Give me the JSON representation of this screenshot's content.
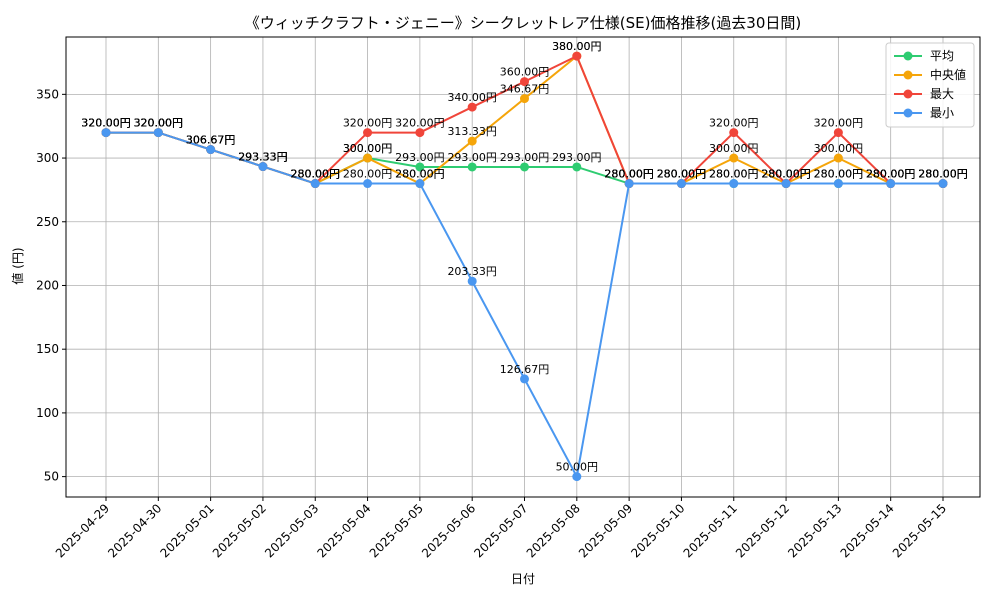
{
  "chart_data": {
    "type": "line",
    "title": "《ウィッチクラフト・ジェニー》シークレットレア仕様(SE)価格推移(過去30日間)",
    "xlabel": "日付",
    "ylabel": "値 (円)",
    "categories": [
      "2025-04-29",
      "2025-04-30",
      "2025-05-01",
      "2025-05-02",
      "2025-05-03",
      "2025-05-04",
      "2025-05-05",
      "2025-05-06",
      "2025-05-07",
      "2025-05-08",
      "2025-05-09",
      "2025-05-10",
      "2025-05-11",
      "2025-05-12",
      "2025-05-13",
      "2025-05-14",
      "2025-05-15"
    ],
    "ylim": [
      34,
      395
    ],
    "yticks": [
      50,
      100,
      150,
      200,
      250,
      300,
      350
    ],
    "grid": true,
    "legend_position": "top-right",
    "label_suffix": "円",
    "series": [
      {
        "name": "平均",
        "color": "#2ecc71",
        "values": [
          320,
          320,
          306.67,
          293.33,
          280,
          300,
          293,
          293,
          293,
          293,
          280,
          280,
          280,
          280,
          280,
          280,
          280
        ]
      },
      {
        "name": "中央値",
        "color": "#f5a50a",
        "values": [
          320,
          320,
          306.67,
          293.33,
          280,
          300,
          280,
          313.33,
          346.67,
          380,
          280,
          280,
          300,
          280,
          300,
          280,
          280
        ]
      },
      {
        "name": "最大",
        "color": "#f0453a",
        "values": [
          320,
          320,
          306.67,
          293.33,
          280,
          320,
          320,
          340,
          360,
          380,
          280,
          280,
          320,
          280,
          320,
          280,
          280
        ]
      },
      {
        "name": "最小",
        "color": "#4a97f0",
        "values": [
          320,
          320,
          306.67,
          293.33,
          280,
          280,
          280,
          203.33,
          126.67,
          50,
          280,
          280,
          280,
          280,
          280,
          280,
          280
        ]
      }
    ]
  }
}
